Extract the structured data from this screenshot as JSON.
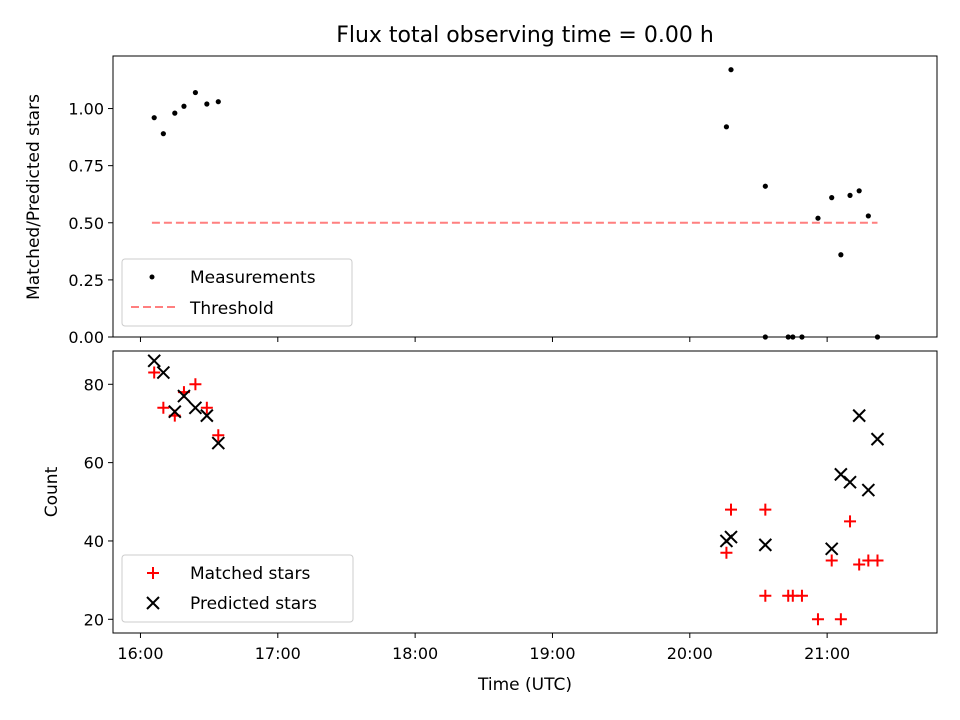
{
  "colors": {
    "matched": "#ff0000",
    "predicted": "#000000",
    "threshold": "#ff7f7f",
    "measurements": "#000000"
  },
  "chart_data": [
    {
      "type": "scatter",
      "title": "Flux total observing time = 0.00 h",
      "xlabel": "",
      "ylabel": "Matched/Predicted stars",
      "xlim": [
        "15:48",
        "21:48"
      ],
      "ylim": [
        0,
        1.23
      ],
      "yticks": [
        "0.00",
        "0.25",
        "0.50",
        "0.75",
        "1.00"
      ],
      "x_tick_values": [
        "16:00",
        "17:00",
        "18:00",
        "19:00",
        "20:00",
        "21:00"
      ],
      "legend_position": "lower-left",
      "grid": false,
      "series": [
        {
          "name": "Measurements",
          "kind": "points",
          "x": [
            "16:06",
            "16:10",
            "16:15",
            "16:19",
            "16:24",
            "16:29",
            "16:34",
            "20:16",
            "20:18",
            "20:33",
            "20:33",
            "20:43",
            "20:45",
            "20:49",
            "20:56",
            "21:02",
            "21:06",
            "21:10",
            "21:14",
            "21:18",
            "21:22"
          ],
          "y": [
            0.96,
            0.89,
            0.98,
            1.01,
            1.07,
            1.02,
            1.03,
            0.92,
            1.17,
            0.66,
            0.0,
            0.0,
            0.0,
            0.0,
            0.52,
            0.61,
            0.36,
            0.62,
            0.64,
            0.53,
            0.0
          ]
        },
        {
          "name": "Threshold",
          "kind": "dashed-line",
          "x": [
            "16:05",
            "21:22"
          ],
          "y": [
            0.5,
            0.5
          ]
        }
      ]
    },
    {
      "type": "scatter",
      "title": "",
      "xlabel": "Time (UTC)",
      "ylabel": "Count",
      "xlim": [
        "15:48",
        "21:48"
      ],
      "ylim": [
        16.5,
        88.5
      ],
      "yticks": [
        "20",
        "40",
        "60",
        "80"
      ],
      "xticks": [
        "16:00",
        "17:00",
        "18:00",
        "19:00",
        "20:00",
        "21:00"
      ],
      "legend_position": "lower-left",
      "grid": false,
      "series": [
        {
          "name": "Matched stars",
          "marker": "+",
          "x": [
            "16:06",
            "16:10",
            "16:15",
            "16:19",
            "16:24",
            "16:29",
            "16:34",
            "20:16",
            "20:18",
            "20:33",
            "20:33",
            "20:43",
            "20:45",
            "20:49",
            "20:56",
            "21:02",
            "21:06",
            "21:10",
            "21:14",
            "21:18",
            "21:22"
          ],
          "y": [
            83,
            74,
            72,
            78,
            80,
            74,
            67,
            37,
            48,
            48,
            26,
            26,
            26,
            26,
            20,
            35,
            20,
            45,
            34,
            35,
            35
          ]
        },
        {
          "name": "Predicted stars",
          "marker": "x",
          "x": [
            "16:06",
            "16:10",
            "16:15",
            "16:19",
            "16:24",
            "16:29",
            "16:34",
            "20:16",
            "20:18",
            "20:33",
            "21:02",
            "21:06",
            "21:10",
            "21:14",
            "21:18",
            "21:22"
          ],
          "y": [
            86,
            83,
            73,
            77,
            74,
            72,
            65,
            40,
            41,
            39,
            38,
            57,
            55,
            72,
            53,
            66
          ]
        }
      ]
    }
  ]
}
